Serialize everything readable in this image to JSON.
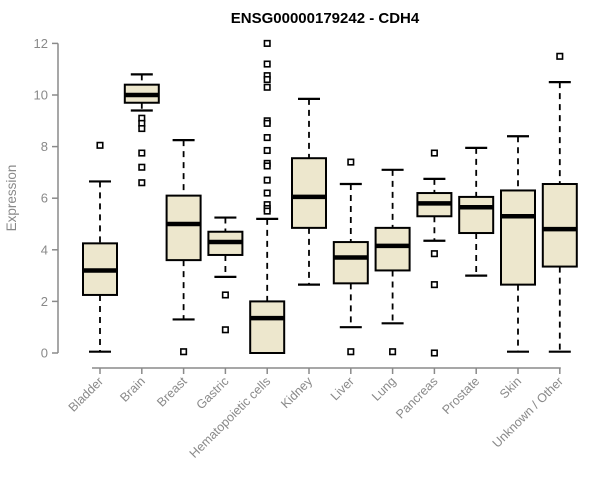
{
  "title": "ENSG00000179242 - CDH4",
  "ylabel": "Expression",
  "colors": {
    "box_fill": "#EDE7CD",
    "box_stroke": "#000000",
    "median": "#000000",
    "whisker": "#000000",
    "axis": "#8a8a8a",
    "tick_label": "#898989",
    "title": "#000000",
    "background": "#ffffff"
  },
  "chart_data": {
    "type": "boxplot",
    "title": "ENSG00000179242 - CDH4",
    "xlabel": "",
    "ylabel": "Expression",
    "ylim": [
      0,
      12
    ],
    "yticks": [
      0,
      2,
      4,
      6,
      8,
      10,
      12
    ],
    "grid": false,
    "legend": "none",
    "categories": [
      "Bladder",
      "Brain",
      "Breast",
      "Gastric",
      "Hematopoietic cells",
      "Kidney",
      "Liver",
      "Lung",
      "Pancreas",
      "Prostate",
      "Skin",
      "Unknown / Other"
    ],
    "series": [
      {
        "name": "Bladder",
        "low": 0.05,
        "q1": 2.25,
        "median": 3.2,
        "q3": 4.25,
        "high": 6.65,
        "outliers": [
          8.05
        ]
      },
      {
        "name": "Brain",
        "low": 9.4,
        "q1": 9.7,
        "median": 10.0,
        "q3": 10.4,
        "high": 10.8,
        "outliers": [
          9.1,
          8.9,
          8.7,
          7.75,
          7.2,
          6.6
        ]
      },
      {
        "name": "Breast",
        "low": 1.3,
        "q1": 3.6,
        "median": 5.0,
        "q3": 6.1,
        "high": 8.25,
        "outliers": [
          0.05
        ]
      },
      {
        "name": "Gastric",
        "low": 2.95,
        "q1": 3.8,
        "median": 4.3,
        "q3": 4.7,
        "high": 5.25,
        "outliers": [
          2.25,
          0.9
        ]
      },
      {
        "name": "Hematopoietic cells",
        "low": 0.0,
        "q1": 0.0,
        "median": 1.35,
        "q3": 2.0,
        "high": 5.2,
        "outliers": [
          12.0,
          11.2,
          10.75,
          10.6,
          10.3,
          9.0,
          8.9,
          8.35,
          7.85,
          7.35,
          7.25,
          6.7,
          6.2,
          5.75,
          5.6,
          5.5
        ]
      },
      {
        "name": "Kidney",
        "low": 2.65,
        "q1": 4.85,
        "median": 6.05,
        "q3": 7.55,
        "high": 9.85,
        "outliers": []
      },
      {
        "name": "Liver",
        "low": 1.0,
        "q1": 2.7,
        "median": 3.7,
        "q3": 4.3,
        "high": 6.55,
        "outliers": [
          7.4,
          0.05
        ]
      },
      {
        "name": "Lung",
        "low": 1.15,
        "q1": 3.2,
        "median": 4.15,
        "q3": 4.85,
        "high": 7.1,
        "outliers": [
          0.05
        ]
      },
      {
        "name": "Pancreas",
        "low": 4.35,
        "q1": 5.3,
        "median": 5.8,
        "q3": 6.2,
        "high": 6.75,
        "outliers": [
          7.75,
          3.85,
          2.65,
          0.0
        ]
      },
      {
        "name": "Prostate",
        "low": 3.0,
        "q1": 4.65,
        "median": 5.65,
        "q3": 6.05,
        "high": 7.95,
        "outliers": []
      },
      {
        "name": "Skin",
        "low": 0.05,
        "q1": 2.65,
        "median": 5.3,
        "q3": 6.3,
        "high": 8.4,
        "outliers": []
      },
      {
        "name": "Unknown / Other",
        "low": 0.05,
        "q1": 3.35,
        "median": 4.8,
        "q3": 6.55,
        "high": 10.5,
        "outliers": [
          11.5
        ]
      }
    ]
  }
}
